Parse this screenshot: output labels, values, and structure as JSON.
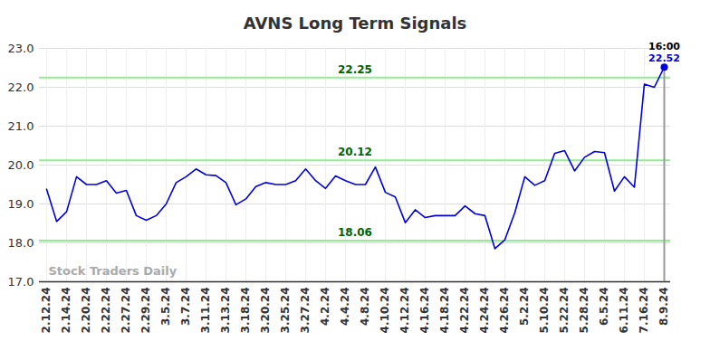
{
  "chart_data": {
    "type": "line",
    "title": "AVNS Long Term Signals",
    "color": "#0000dd",
    "categories": [
      "2.12.24",
      null,
      "2.14.24",
      null,
      "2.20.24",
      null,
      "2.22.24",
      null,
      "2.27.24",
      null,
      "2.29.24",
      null,
      "3.5.24",
      null,
      "3.7.24",
      null,
      "3.11.24",
      null,
      "3.13.24",
      null,
      "3.18.24",
      null,
      "3.20.24",
      null,
      "3.25.24",
      null,
      "3.27.24",
      null,
      "4.2.24",
      null,
      "4.4.24",
      null,
      "4.8.24",
      null,
      "4.10.24",
      null,
      "4.12.24",
      null,
      "4.16.24",
      null,
      "4.18.24",
      null,
      "4.22.24",
      null,
      "4.24.24",
      null,
      "4.26.24",
      null,
      "5.2.24",
      null,
      "5.10.24",
      null,
      "5.22.24",
      null,
      "5.28.24",
      null,
      "6.5.24",
      null,
      "6.11.24",
      null,
      "7.16.24",
      null,
      "8.9.24"
    ],
    "values": [
      19.38,
      18.55,
      18.8,
      19.7,
      19.5,
      19.5,
      19.6,
      19.28,
      19.35,
      18.7,
      18.58,
      18.7,
      19.0,
      19.55,
      19.7,
      19.9,
      19.75,
      19.73,
      19.55,
      18.98,
      19.13,
      19.45,
      19.55,
      19.5,
      19.5,
      19.6,
      19.9,
      19.6,
      19.4,
      19.72,
      19.6,
      19.5,
      19.5,
      19.95,
      19.3,
      19.18,
      18.52,
      18.85,
      18.65,
      18.7,
      18.7,
      18.7,
      18.95,
      18.75,
      18.7,
      17.85,
      18.08,
      18.78,
      19.7,
      19.48,
      19.6,
      20.3,
      20.37,
      19.85,
      20.2,
      20.35,
      20.32,
      19.33,
      19.7,
      19.43,
      22.08,
      22.0,
      22.52
    ],
    "ylim": [
      17,
      23
    ],
    "yticks": [
      17,
      18,
      19,
      20,
      21,
      22,
      23
    ],
    "grid": true,
    "signal_lines": [
      22.25,
      20.12,
      18.06
    ],
    "last_point": {
      "time": "16:00",
      "value": 22.52
    },
    "watermark": "Stock Traders Daily"
  }
}
